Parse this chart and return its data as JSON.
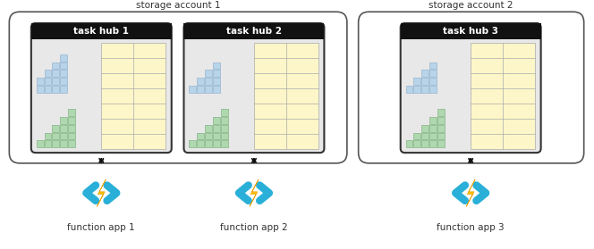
{
  "storage_account_1_label": "storage account 1",
  "storage_account_2_label": "storage account 2",
  "task_hub_labels": [
    "task hub 1",
    "task hub 2",
    "task hub 3"
  ],
  "function_app_labels": [
    "function app 1",
    "function app 2",
    "function app 3"
  ],
  "bg_color": "#ffffff",
  "outer_box_ec": "#555555",
  "inner_box_fill": "#e8e8e8",
  "header_fill": "#111111",
  "header_text_color": "#ffffff",
  "blue_block_color": "#b8d4e8",
  "blue_block_ec": "#88aacc",
  "green_block_color": "#b0d8b0",
  "green_block_ec": "#70aa70",
  "yellow_fill": "#fdf6c8",
  "yellow_ec": "#aaaaaa",
  "arrow_color": "#111111",
  "bolt_yellow1": "#ffc200",
  "bolt_yellow2": "#e8a000",
  "chevron_blue": "#2ab0d8",
  "sa_label_color": "#333333",
  "hub_label_color": "#ffffff",
  "app_label_color": "#333333"
}
